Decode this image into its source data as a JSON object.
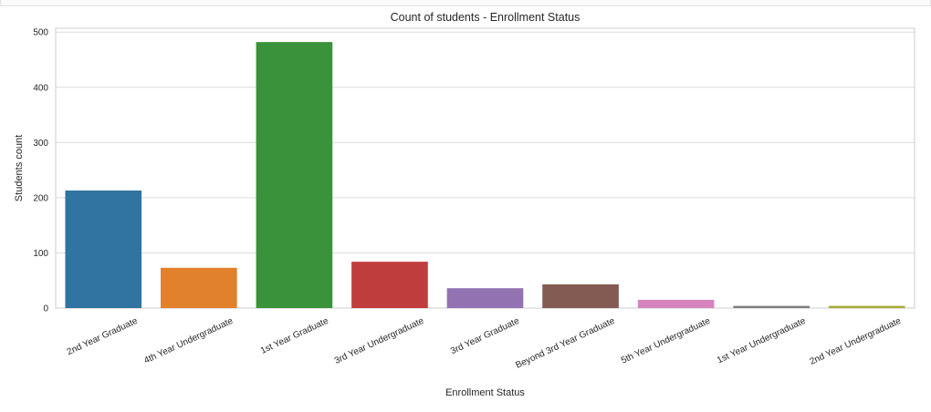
{
  "chart_data": {
    "type": "bar",
    "title": "Count of students - Enrollment Status",
    "xlabel": "Enrollment Status",
    "ylabel": "Students count",
    "categories": [
      "2nd Year Graduate",
      "4th Year Undergraduate",
      "1st Year Graduate",
      "3rd Year Undergraduate",
      "3rd Year Graduate",
      "Beyond 3rd Year Graduate",
      "5th Year Undergraduate",
      "1st Year Undergraduate",
      "2nd Year Undergraduate"
    ],
    "values": [
      213,
      73,
      482,
      84,
      36,
      43,
      15,
      4,
      4
    ],
    "colors": [
      "#3274a1",
      "#e1812c",
      "#3a923a",
      "#c03d3e",
      "#9372b2",
      "#845b53",
      "#d684bd",
      "#7f7f7f",
      "#a9aa35"
    ],
    "ylim": [
      0,
      507
    ],
    "yticks": [
      0,
      100,
      200,
      300,
      400,
      500
    ],
    "grid": true,
    "style": "seaborn-whitegrid"
  }
}
